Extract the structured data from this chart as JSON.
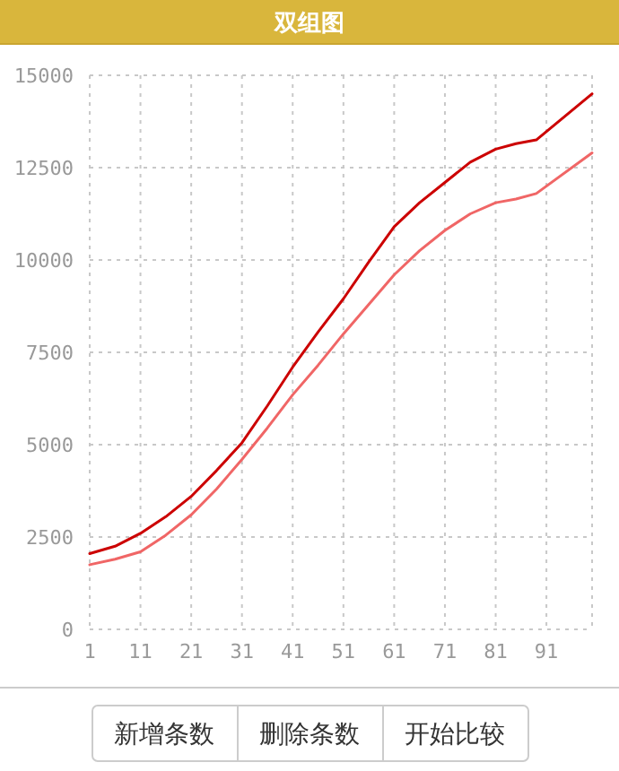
{
  "chart_data": {
    "type": "line",
    "title": "双组图",
    "x": [
      1,
      6,
      11,
      16,
      21,
      26,
      31,
      36,
      41,
      46,
      51,
      56,
      61,
      66,
      71,
      76,
      81,
      85,
      89,
      100
    ],
    "series": [
      {
        "color": "#cc0000",
        "values": [
          2050,
          2250,
          2600,
          3050,
          3600,
          4300,
          5050,
          6050,
          7100,
          8050,
          8950,
          9950,
          10900,
          11550,
          12100,
          12650,
          13000,
          13150,
          13250,
          14500
        ]
      },
      {
        "color": "#f06666",
        "values": [
          1750,
          1900,
          2100,
          2550,
          3100,
          3800,
          4600,
          5450,
          6350,
          7150,
          8000,
          8800,
          9600,
          10250,
          10800,
          11250,
          11550,
          11650,
          11800,
          12900
        ]
      }
    ],
    "xlim": [
      1,
      100
    ],
    "xticks": [
      1,
      11,
      21,
      31,
      41,
      51,
      61,
      71,
      81,
      91
    ],
    "ylim": [
      0,
      15000
    ],
    "yticks": [
      0,
      2500,
      5000,
      7500,
      10000,
      12500,
      15000
    ],
    "grid": true,
    "marker": "none",
    "line_style": "solid",
    "annotations": [
      "新增条数",
      "删除条数",
      "开始比较"
    ]
  }
}
